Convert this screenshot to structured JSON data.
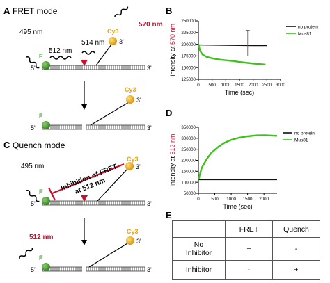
{
  "panels": {
    "a": {
      "letter": "A",
      "title": "FRET mode"
    },
    "b": {
      "letter": "B"
    },
    "c": {
      "letter": "C",
      "title": "Quench mode"
    },
    "d": {
      "letter": "D"
    },
    "e": {
      "letter": "E"
    }
  },
  "schematic": {
    "excitation": "495 nm",
    "donor_emission": "512 nm",
    "fret_transfer": "514 nm",
    "acceptor_emission": "570 nm",
    "quench_emission": "512 nm",
    "acceptor_dye": "Cy3",
    "donor_dye": "F",
    "five_prime": "5'",
    "three_prime": "3'",
    "inhibition_label_line1": "Inhibition of FRET",
    "inhibition_label_line2": "at 512 nm"
  },
  "colors": {
    "donor": "#3a8c2c",
    "acceptor": "#e8a317",
    "accent_red": "#c8102e",
    "mus81": "#3cc21a",
    "no_protein": "#111111"
  },
  "chart_data": [
    {
      "type": "line",
      "panel": "B",
      "xlabel": "Time (sec)",
      "ylabel_prefix": "Intensity at ",
      "ylabel_highlight": "570 nm",
      "xlim": [
        0,
        3000
      ],
      "ylim": [
        125000,
        250000
      ],
      "xticks": [
        0,
        500,
        1000,
        1500,
        2000,
        2500,
        3000
      ],
      "yticks": [
        125000,
        150000,
        175000,
        200000,
        225000,
        250000
      ],
      "legend_position": "right",
      "series": [
        {
          "name": "no protein",
          "color": "#111111",
          "x": [
            0,
            500,
            1000,
            1500,
            2000,
            2500
          ],
          "y": [
            198500,
            198200,
            197800,
            197500,
            197200,
            197000
          ]
        },
        {
          "name": "Mus81",
          "color": "#3cc21a",
          "x": [
            0,
            60,
            150,
            300,
            500,
            800,
            1100,
            1300,
            1400,
            1500,
            1800,
            2100,
            2450
          ],
          "y": [
            200000,
            186000,
            178000,
            173000,
            170000,
            167000,
            165000,
            164000,
            163000,
            162000,
            160000,
            158000,
            156500
          ]
        }
      ],
      "error_bar": {
        "x": 1800,
        "y": 196000,
        "low": 175000,
        "high": 230000
      }
    },
    {
      "type": "line",
      "panel": "D",
      "xlabel": "Time (sec)",
      "ylabel_prefix": "Intensity at ",
      "ylabel_highlight": "512 nm",
      "xlim": [
        0,
        2400
      ],
      "ylim": [
        50000,
        350000
      ],
      "xticks": [
        0,
        500,
        1000,
        1500,
        2000
      ],
      "yticks": [
        50000,
        100000,
        150000,
        200000,
        250000,
        300000,
        350000
      ],
      "legend_position": "right",
      "series": [
        {
          "name": "no protein",
          "color": "#111111",
          "x": [
            0,
            500,
            1000,
            1500,
            2000,
            2400
          ],
          "y": [
            112000,
            112000,
            112000,
            112000,
            112000,
            112000
          ]
        },
        {
          "name": "Mus81",
          "color": "#3cc21a",
          "x": [
            0,
            100,
            250,
            400,
            600,
            800,
            1000,
            1250,
            1500,
            1750,
            2000,
            2400
          ],
          "y": [
            112000,
            165000,
            205000,
            235000,
            260000,
            280000,
            293000,
            303000,
            309000,
            313000,
            314000,
            311000
          ]
        }
      ]
    }
  ],
  "table": {
    "headers": [
      "",
      "FRET",
      "Quench"
    ],
    "rows": [
      {
        "label_line1": "No",
        "label_line2": "Inhibitor",
        "fret": "+",
        "quench": "-"
      },
      {
        "label": "Inhibitor",
        "fret": "-",
        "quench": "+"
      }
    ]
  }
}
